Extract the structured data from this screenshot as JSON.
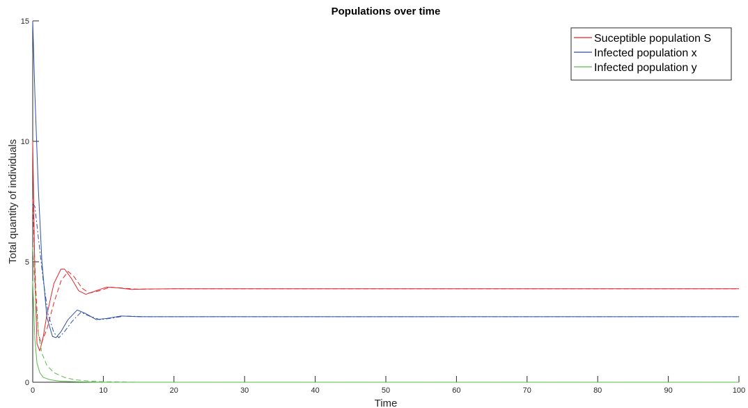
{
  "chart_data": {
    "type": "line",
    "title": "Populations over time",
    "xlabel": "Time",
    "ylabel": "Total quantity of individuals",
    "xlim": [
      0,
      100
    ],
    "ylim": [
      0,
      15
    ],
    "x_ticks": [
      0,
      10,
      20,
      30,
      40,
      50,
      60,
      70,
      80,
      90,
      100
    ],
    "y_ticks": [
      0,
      5,
      10,
      15
    ],
    "grid": false,
    "legend_position": "top-right",
    "legend": [
      {
        "label": "Suceptible population S",
        "color": "#e3242b"
      },
      {
        "label": "Infected population x",
        "color": "#2c4fa3"
      },
      {
        "label": "Infected population y",
        "color": "#58b947"
      }
    ],
    "series": [
      {
        "name": "Suceptible population S",
        "style": "solid",
        "color": "#e3242b",
        "points": [
          [
            0,
            10.0
          ],
          [
            0.3,
            4.5
          ],
          [
            0.6,
            1.6
          ],
          [
            1.0,
            1.3
          ],
          [
            1.5,
            1.9
          ],
          [
            2.0,
            2.8
          ],
          [
            3.0,
            4.1
          ],
          [
            4.0,
            4.7
          ],
          [
            4.5,
            4.7
          ],
          [
            5.5,
            4.3
          ],
          [
            6.5,
            3.8
          ],
          [
            7.5,
            3.65
          ],
          [
            9.0,
            3.8
          ],
          [
            10.5,
            3.95
          ],
          [
            12.0,
            3.92
          ],
          [
            14.0,
            3.85
          ],
          [
            16.0,
            3.87
          ],
          [
            20.0,
            3.88
          ],
          [
            100.0,
            3.88
          ]
        ]
      },
      {
        "name": "Suceptible population S (dashed)",
        "style": "dashed",
        "color": "#e3242b",
        "points": [
          [
            0,
            7.6
          ],
          [
            0.4,
            4.0
          ],
          [
            0.8,
            2.0
          ],
          [
            1.2,
            1.6
          ],
          [
            2.0,
            2.2
          ],
          [
            3.0,
            3.3
          ],
          [
            4.0,
            4.2
          ],
          [
            5.0,
            4.6
          ],
          [
            5.8,
            4.4
          ],
          [
            7.0,
            3.9
          ],
          [
            8.0,
            3.7
          ],
          [
            9.5,
            3.8
          ],
          [
            11.0,
            3.95
          ],
          [
            13.0,
            3.9
          ],
          [
            15.0,
            3.86
          ],
          [
            20.0,
            3.88
          ],
          [
            100.0,
            3.88
          ]
        ]
      },
      {
        "name": "Infected population x",
        "style": "solid",
        "color": "#2c4fa3",
        "points": [
          [
            0,
            15.0
          ],
          [
            0.3,
            12.0
          ],
          [
            0.8,
            8.0
          ],
          [
            1.3,
            5.0
          ],
          [
            2.0,
            2.7
          ],
          [
            2.8,
            1.9
          ],
          [
            3.3,
            1.85
          ],
          [
            4.0,
            2.1
          ],
          [
            5.0,
            2.6
          ],
          [
            6.3,
            3.0
          ],
          [
            7.5,
            2.85
          ],
          [
            9.0,
            2.6
          ],
          [
            10.5,
            2.65
          ],
          [
            12.5,
            2.75
          ],
          [
            15.0,
            2.72
          ],
          [
            20.0,
            2.72
          ],
          [
            100.0,
            2.72
          ]
        ]
      },
      {
        "name": "Infected population x (dash-dot)",
        "style": "dashdot",
        "color": "#2c4fa3",
        "points": [
          [
            0,
            7.4
          ],
          [
            0.3,
            7.3
          ],
          [
            0.8,
            6.0
          ],
          [
            1.5,
            4.2
          ],
          [
            2.2,
            2.8
          ],
          [
            3.0,
            2.05
          ],
          [
            3.7,
            1.85
          ],
          [
            4.5,
            2.1
          ],
          [
            5.5,
            2.5
          ],
          [
            6.8,
            2.9
          ],
          [
            8.0,
            2.75
          ],
          [
            9.5,
            2.6
          ],
          [
            11.0,
            2.65
          ],
          [
            13.0,
            2.75
          ],
          [
            16.0,
            2.72
          ],
          [
            100.0,
            2.72
          ]
        ]
      },
      {
        "name": "Infected population y",
        "style": "solid",
        "color": "#58b947",
        "points": [
          [
            0,
            4.2
          ],
          [
            0.3,
            1.8
          ],
          [
            0.6,
            0.8
          ],
          [
            1.0,
            0.4
          ],
          [
            1.5,
            0.2
          ],
          [
            2.5,
            0.1
          ],
          [
            4.0,
            0.04
          ],
          [
            6.0,
            0.02
          ],
          [
            10.0,
            0.0
          ],
          [
            100.0,
            0.0
          ]
        ]
      },
      {
        "name": "Infected population y (dashed)",
        "style": "dashed",
        "color": "#58b947",
        "points": [
          [
            0,
            5.6
          ],
          [
            0.4,
            3.5
          ],
          [
            0.8,
            2.0
          ],
          [
            1.3,
            1.2
          ],
          [
            2.0,
            0.7
          ],
          [
            3.0,
            0.4
          ],
          [
            4.5,
            0.2
          ],
          [
            6.0,
            0.1
          ],
          [
            8.0,
            0.05
          ],
          [
            10.0,
            0.02
          ],
          [
            15.0,
            0.0
          ],
          [
            100.0,
            0.0
          ]
        ]
      }
    ]
  }
}
